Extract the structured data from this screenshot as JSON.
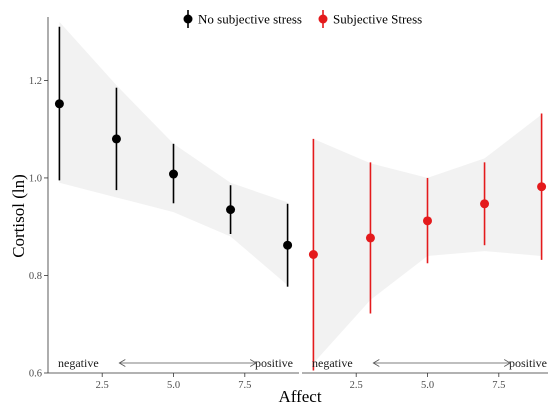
{
  "chart_data": {
    "type": "scatter",
    "subtype": "point-range with confidence band, two facets",
    "xlabel": "Affect",
    "ylabel": "Cortisol (ln)",
    "legend": {
      "placement": "top",
      "entries": [
        {
          "label": "No subjective stress",
          "color": "#000000"
        },
        {
          "label": "Subjective Stress",
          "color": "#e41a1c"
        }
      ]
    },
    "ylim": [
      0.6,
      1.33
    ],
    "yticks": [
      0.6,
      0.8,
      1.0,
      1.2
    ],
    "ytick_labels": [
      "0.6",
      "0.8",
      "1.0",
      "1.2"
    ],
    "xlim": [
      0.6,
      9.4
    ],
    "xticks": [
      2.5,
      5.0,
      7.5
    ],
    "xtick_labels": [
      "2.5",
      "5.0",
      "7.5"
    ],
    "grid": false,
    "band_color": "#ebebeb",
    "panels": [
      {
        "series_label": "No subjective stress",
        "color": "#000000",
        "annotation": {
          "left": "negative",
          "right": "positive"
        },
        "band": {
          "x": [
            1,
            3,
            5,
            7,
            9
          ],
          "lower": [
            0.99,
            0.96,
            0.93,
            0.88,
            0.78
          ],
          "upper": [
            1.32,
            1.19,
            1.07,
            0.99,
            0.95
          ]
        },
        "points": [
          {
            "x": 1,
            "y": 1.152,
            "ymin": 0.995,
            "ymax": 1.31
          },
          {
            "x": 3,
            "y": 1.08,
            "ymin": 0.975,
            "ymax": 1.185
          },
          {
            "x": 5,
            "y": 1.008,
            "ymin": 0.948,
            "ymax": 1.07
          },
          {
            "x": 7,
            "y": 0.935,
            "ymin": 0.885,
            "ymax": 0.985
          },
          {
            "x": 9,
            "y": 0.862,
            "ymin": 0.777,
            "ymax": 0.947
          }
        ]
      },
      {
        "series_label": "Subjective Stress",
        "color": "#e41a1c",
        "annotation": {
          "left": "negative",
          "right": "positive"
        },
        "band": {
          "x": [
            1,
            3,
            5,
            7,
            9
          ],
          "lower": [
            0.62,
            0.75,
            0.84,
            0.85,
            0.84
          ],
          "upper": [
            1.08,
            1.03,
            1.0,
            1.04,
            1.13
          ]
        },
        "points": [
          {
            "x": 1,
            "y": 0.843,
            "ymin": 0.605,
            "ymax": 1.08
          },
          {
            "x": 3,
            "y": 0.877,
            "ymin": 0.722,
            "ymax": 1.032
          },
          {
            "x": 5,
            "y": 0.912,
            "ymin": 0.825,
            "ymax": 1.0
          },
          {
            "x": 7,
            "y": 0.947,
            "ymin": 0.862,
            "ymax": 1.032
          },
          {
            "x": 9,
            "y": 0.982,
            "ymin": 0.832,
            "ymax": 1.132
          }
        ]
      }
    ]
  }
}
